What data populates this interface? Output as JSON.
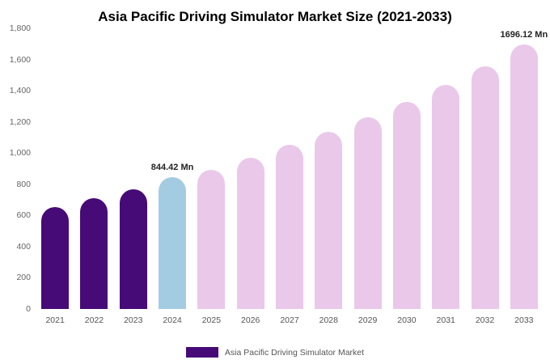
{
  "title": "Asia Pacific Driving Simulator Market Size (2021-2033)",
  "legend": {
    "label": "Asia Pacific Driving Simulator Market",
    "color": "#470b77"
  },
  "chart_data": {
    "type": "bar",
    "title": "Asia Pacific Driving Simulator Market Size (2021-2033)",
    "categories": [
      "2021",
      "2022",
      "2023",
      "2024",
      "2025",
      "2026",
      "2027",
      "2028",
      "2029",
      "2030",
      "2031",
      "2032",
      "2033"
    ],
    "values": [
      655,
      712,
      768,
      844.42,
      893,
      972,
      1052,
      1138,
      1228,
      1330,
      1437,
      1556,
      1696.12
    ],
    "bar_colors": [
      "#470b77",
      "#470b77",
      "#470b77",
      "#a3cce3",
      "#eac8ea",
      "#eac8ea",
      "#eac8ea",
      "#eac8ea",
      "#eac8ea",
      "#eac8ea",
      "#eac8ea",
      "#eac8ea",
      "#eac8ea"
    ],
    "ylim": [
      0,
      1800
    ],
    "yticks": [
      0,
      200,
      400,
      600,
      800,
      1000,
      1200,
      1400,
      1600,
      1800
    ],
    "ytick_labels": [
      "0",
      "200",
      "400",
      "600",
      "800",
      "1,000",
      "1,200",
      "1,400",
      "1,600",
      "1,800"
    ],
    "annotations": [
      {
        "category": "2024",
        "text": "844.42 Mn"
      },
      {
        "category": "2033",
        "text": "1696.12 Mn"
      }
    ],
    "grid": false,
    "legend_position": "bottom"
  }
}
